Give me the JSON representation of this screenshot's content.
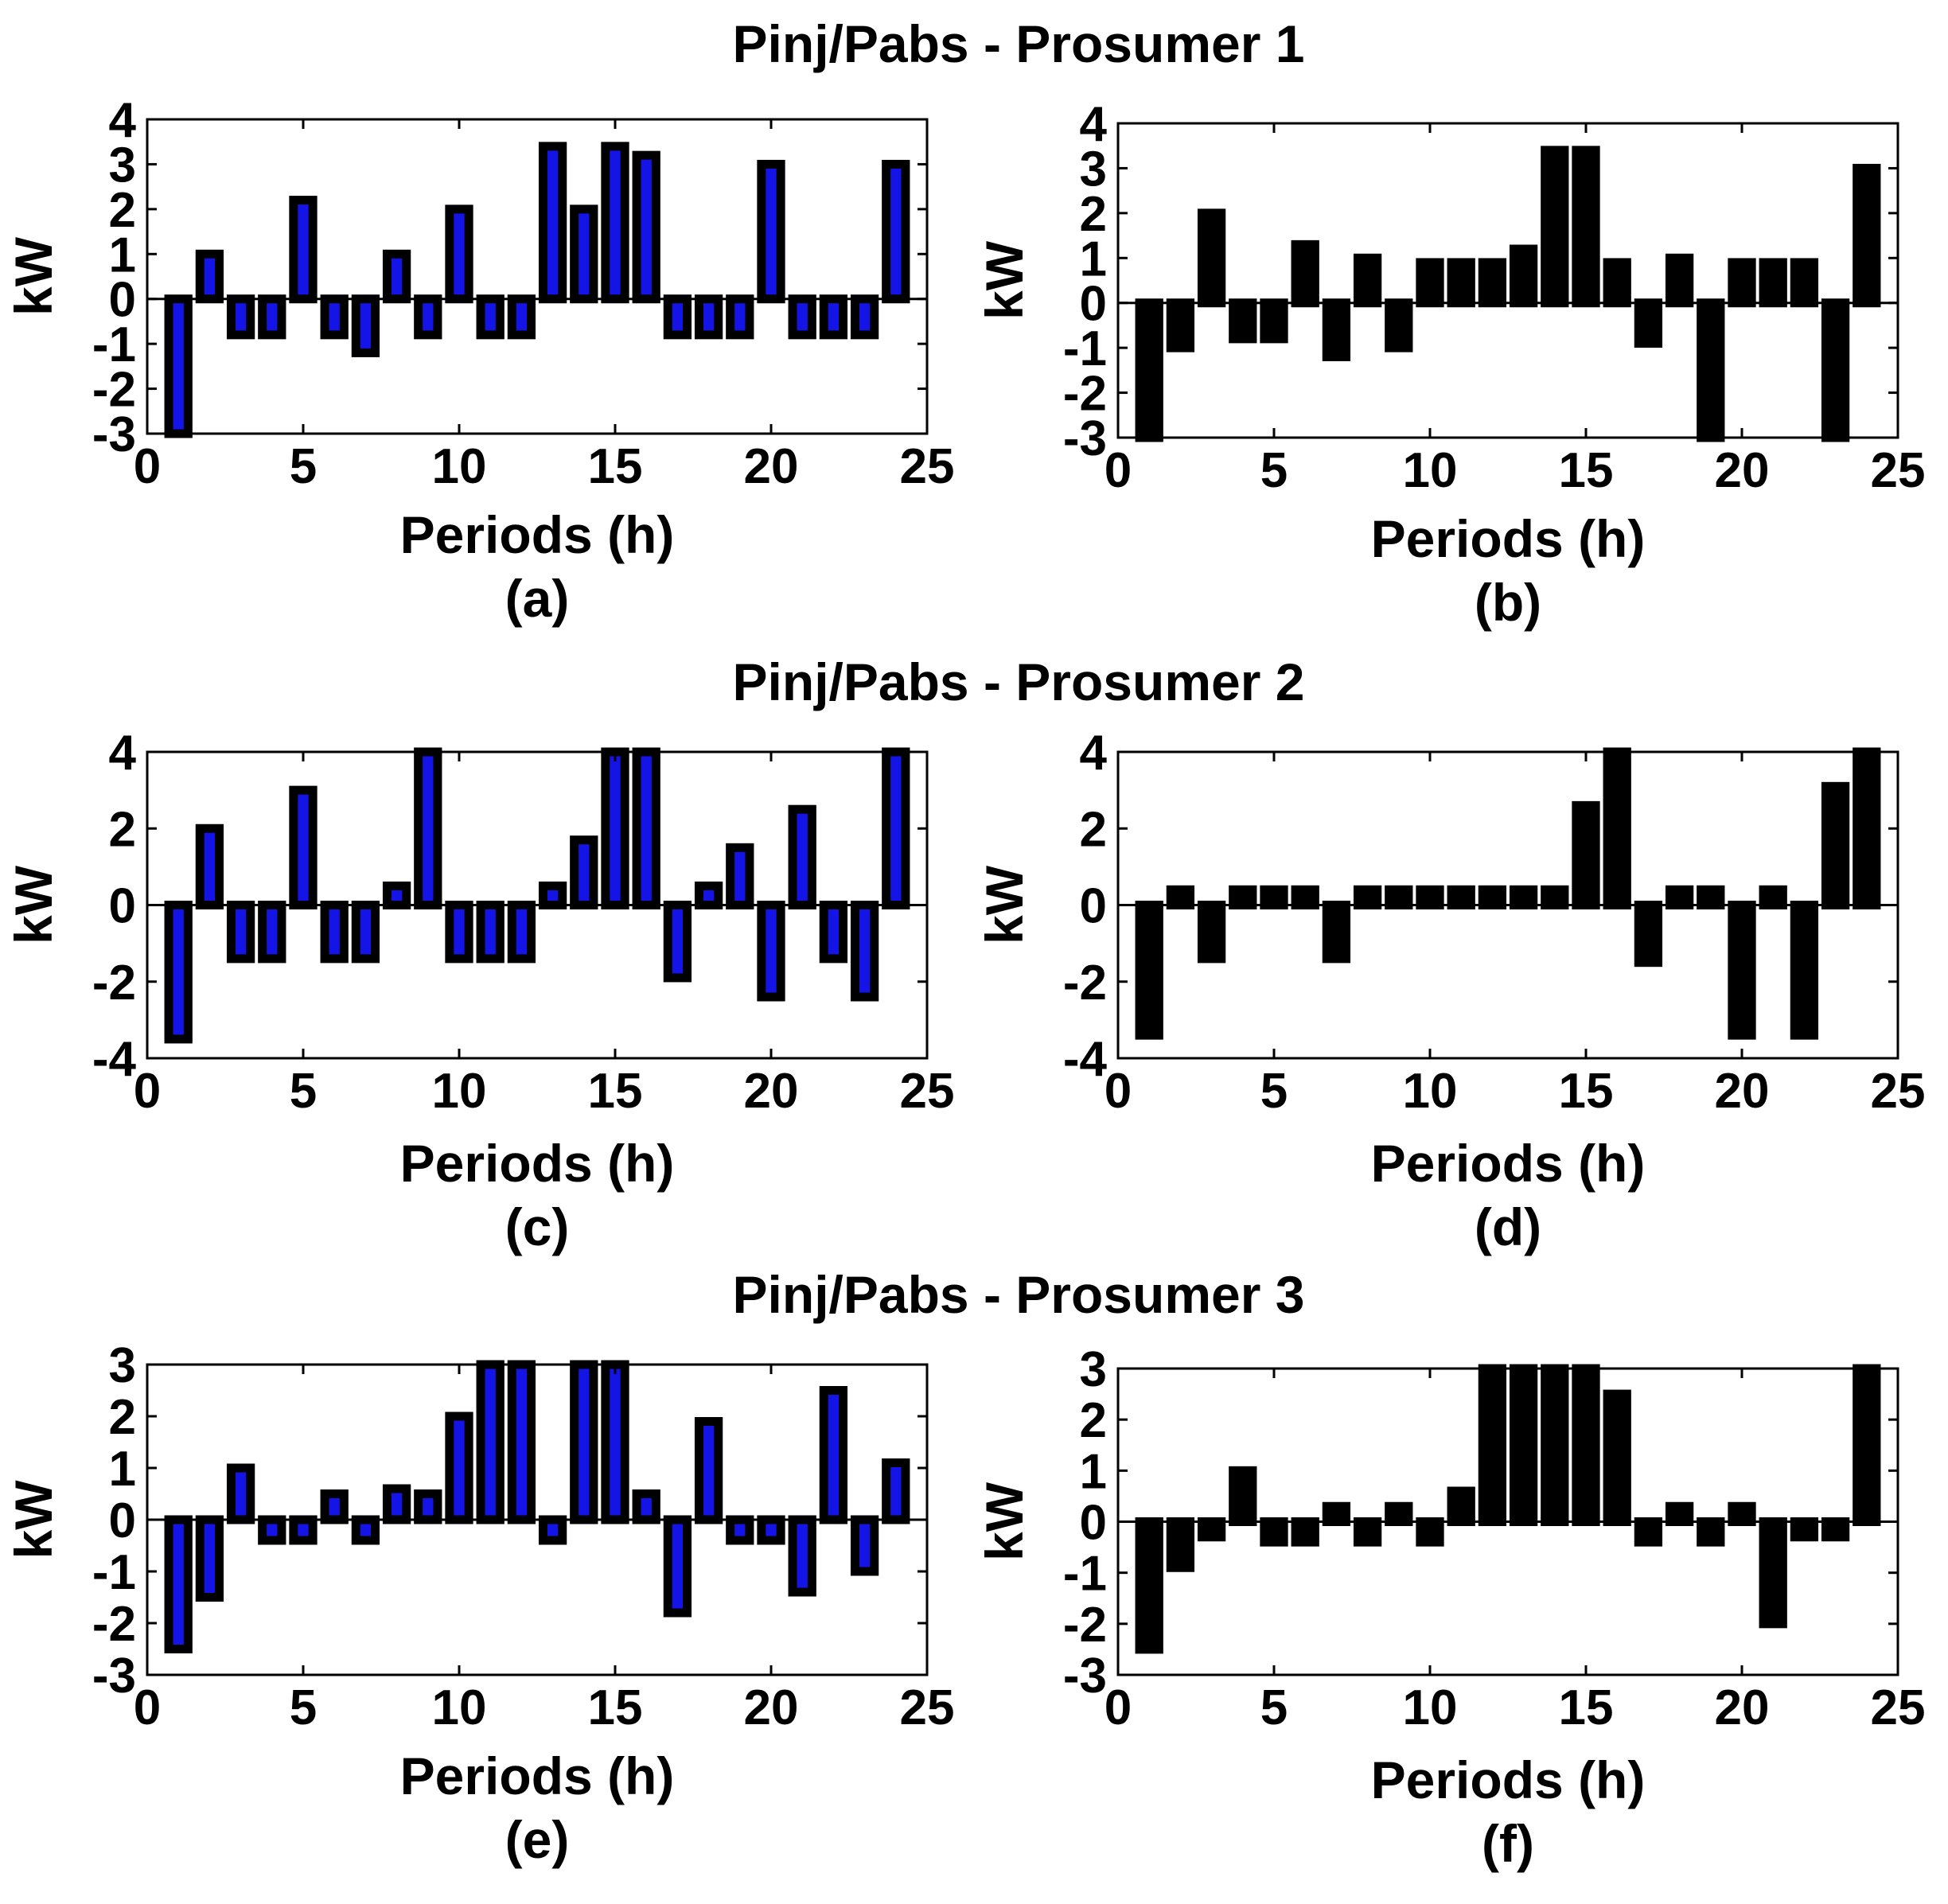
{
  "rows": [
    {
      "title": "Pinj/Pabs - Prosumer 1"
    },
    {
      "title": "Pinj/Pabs - Prosumer 2"
    },
    {
      "title": "Pinj/Pabs - Prosumer 3"
    }
  ],
  "colors": {
    "blue_bar": "#1414e6",
    "black_bar": "#000000",
    "bar_outline": "#000000",
    "axis": "#000000",
    "grid_bg": "#ffffff"
  },
  "chart_data": [
    {
      "id": "a",
      "type": "bar",
      "caption": "(a)",
      "xlabel": "Periods (h)",
      "ylabel": "kW",
      "xlim": [
        0,
        25
      ],
      "ylim": [
        -3,
        4
      ],
      "xticks": [
        0,
        5,
        10,
        15,
        20,
        25
      ],
      "yticks": [
        -3,
        -2,
        -1,
        0,
        1,
        2,
        3,
        4
      ],
      "series": [
        {
          "name": "Pinj/Pabs",
          "color": "blue",
          "x": [
            1,
            2,
            3,
            4,
            5,
            6,
            7,
            8,
            9,
            10,
            11,
            12,
            13,
            14,
            15,
            16,
            17,
            18,
            19,
            20,
            21,
            22,
            23,
            24
          ],
          "values": [
            -3,
            1,
            -0.8,
            -0.8,
            2.2,
            -0.8,
            -1.2,
            1,
            -0.8,
            2,
            -0.8,
            -0.8,
            3.4,
            2,
            3.4,
            3.2,
            -0.8,
            -0.8,
            -0.8,
            3,
            -0.8,
            -0.8,
            -0.8,
            3
          ]
        }
      ]
    },
    {
      "id": "b",
      "type": "bar",
      "caption": "(b)",
      "xlabel": "Periods (h)",
      "ylabel": "kW",
      "xlim": [
        0,
        25
      ],
      "ylim": [
        -3,
        4
      ],
      "xticks": [
        0,
        5,
        10,
        15,
        20,
        25
      ],
      "yticks": [
        -3,
        -2,
        -1,
        0,
        1,
        2,
        3,
        4
      ],
      "series": [
        {
          "name": "Pinj/Pabs",
          "color": "black",
          "x": [
            1,
            2,
            3,
            4,
            5,
            6,
            7,
            8,
            9,
            10,
            11,
            12,
            13,
            14,
            15,
            16,
            17,
            18,
            19,
            20,
            21,
            22,
            23,
            24
          ],
          "values": [
            -3,
            -1,
            2,
            -0.8,
            -0.8,
            1.3,
            -1.2,
            1,
            -1,
            0.9,
            0.9,
            0.9,
            1.2,
            3.4,
            3.4,
            0.9,
            -0.9,
            1,
            -3,
            0.9,
            0.9,
            0.9,
            -3,
            3
          ]
        }
      ]
    },
    {
      "id": "c",
      "type": "bar",
      "caption": "(c)",
      "xlabel": "Periods (h)",
      "ylabel": "kW",
      "xlim": [
        0,
        25
      ],
      "ylim": [
        -4,
        4
      ],
      "xticks": [
        0,
        5,
        10,
        15,
        20,
        25
      ],
      "yticks": [
        -4,
        -2,
        0,
        2,
        4
      ],
      "series": [
        {
          "name": "Pinj/Pabs",
          "color": "blue",
          "x": [
            1,
            2,
            3,
            4,
            5,
            6,
            7,
            8,
            9,
            10,
            11,
            12,
            13,
            14,
            15,
            16,
            17,
            18,
            19,
            20,
            21,
            22,
            23,
            24
          ],
          "values": [
            -3.5,
            2,
            -1.4,
            -1.4,
            3,
            -1.4,
            -1.4,
            0.5,
            4,
            -1.4,
            -1.4,
            -1.4,
            0.5,
            1.7,
            4,
            4,
            -1.9,
            0.5,
            1.5,
            -2.4,
            2.5,
            -1.4,
            -2.4,
            4
          ]
        }
      ]
    },
    {
      "id": "d",
      "type": "bar",
      "caption": "(d)",
      "xlabel": "Periods (h)",
      "ylabel": "kW",
      "xlim": [
        0,
        25
      ],
      "ylim": [
        -4,
        4
      ],
      "xticks": [
        0,
        5,
        10,
        15,
        20,
        25
      ],
      "yticks": [
        -4,
        -2,
        0,
        2,
        4
      ],
      "series": [
        {
          "name": "Pinj/Pabs",
          "color": "black",
          "x": [
            1,
            2,
            3,
            4,
            5,
            6,
            7,
            8,
            9,
            10,
            11,
            12,
            13,
            14,
            15,
            16,
            17,
            18,
            19,
            20,
            21,
            22,
            23,
            24
          ],
          "values": [
            -3.4,
            0.4,
            -1.4,
            0.4,
            0.4,
            0.4,
            -1.4,
            0.4,
            0.4,
            0.4,
            0.4,
            0.4,
            0.4,
            0.4,
            2.6,
            4,
            -1.5,
            0.4,
            0.4,
            -3.4,
            0.4,
            -3.4,
            3.1,
            4
          ]
        }
      ]
    },
    {
      "id": "e",
      "type": "bar",
      "caption": "(e)",
      "xlabel": "Periods (h)",
      "ylabel": "kW",
      "xlim": [
        0,
        25
      ],
      "ylim": [
        -3,
        3
      ],
      "xticks": [
        0,
        5,
        10,
        15,
        20,
        25
      ],
      "yticks": [
        -3,
        -2,
        -1,
        0,
        1,
        2,
        3
      ],
      "series": [
        {
          "name": "Pinj/Pabs",
          "color": "blue",
          "x": [
            1,
            2,
            3,
            4,
            5,
            6,
            7,
            8,
            9,
            10,
            11,
            12,
            13,
            14,
            15,
            16,
            17,
            18,
            19,
            20,
            21,
            22,
            23,
            24
          ],
          "values": [
            -2.5,
            -1.5,
            1,
            -0.4,
            -0.4,
            0.5,
            -0.4,
            0.6,
            0.5,
            2,
            3,
            3,
            -0.4,
            3,
            3,
            0.5,
            -1.8,
            1.9,
            -0.4,
            -0.4,
            -1.4,
            2.5,
            -1,
            1.1
          ]
        }
      ]
    },
    {
      "id": "f",
      "type": "bar",
      "caption": "(f)",
      "xlabel": "Periods (h)",
      "ylabel": "kW",
      "xlim": [
        0,
        25
      ],
      "ylim": [
        -3,
        3
      ],
      "xticks": [
        0,
        5,
        10,
        15,
        20,
        25
      ],
      "yticks": [
        -3,
        -2,
        -1,
        0,
        1,
        2,
        3
      ],
      "series": [
        {
          "name": "Pinj/Pabs",
          "color": "black",
          "x": [
            1,
            2,
            3,
            4,
            5,
            6,
            7,
            8,
            9,
            10,
            11,
            12,
            13,
            14,
            15,
            16,
            17,
            18,
            19,
            20,
            21,
            22,
            23,
            24
          ],
          "values": [
            -2.5,
            -0.9,
            -0.3,
            1,
            -0.4,
            -0.4,
            0.3,
            -0.4,
            0.3,
            -0.4,
            0.6,
            3,
            3,
            3,
            3,
            2.5,
            -0.4,
            0.3,
            -0.4,
            0.3,
            -2,
            -0.3,
            -0.3,
            3
          ]
        }
      ]
    }
  ]
}
